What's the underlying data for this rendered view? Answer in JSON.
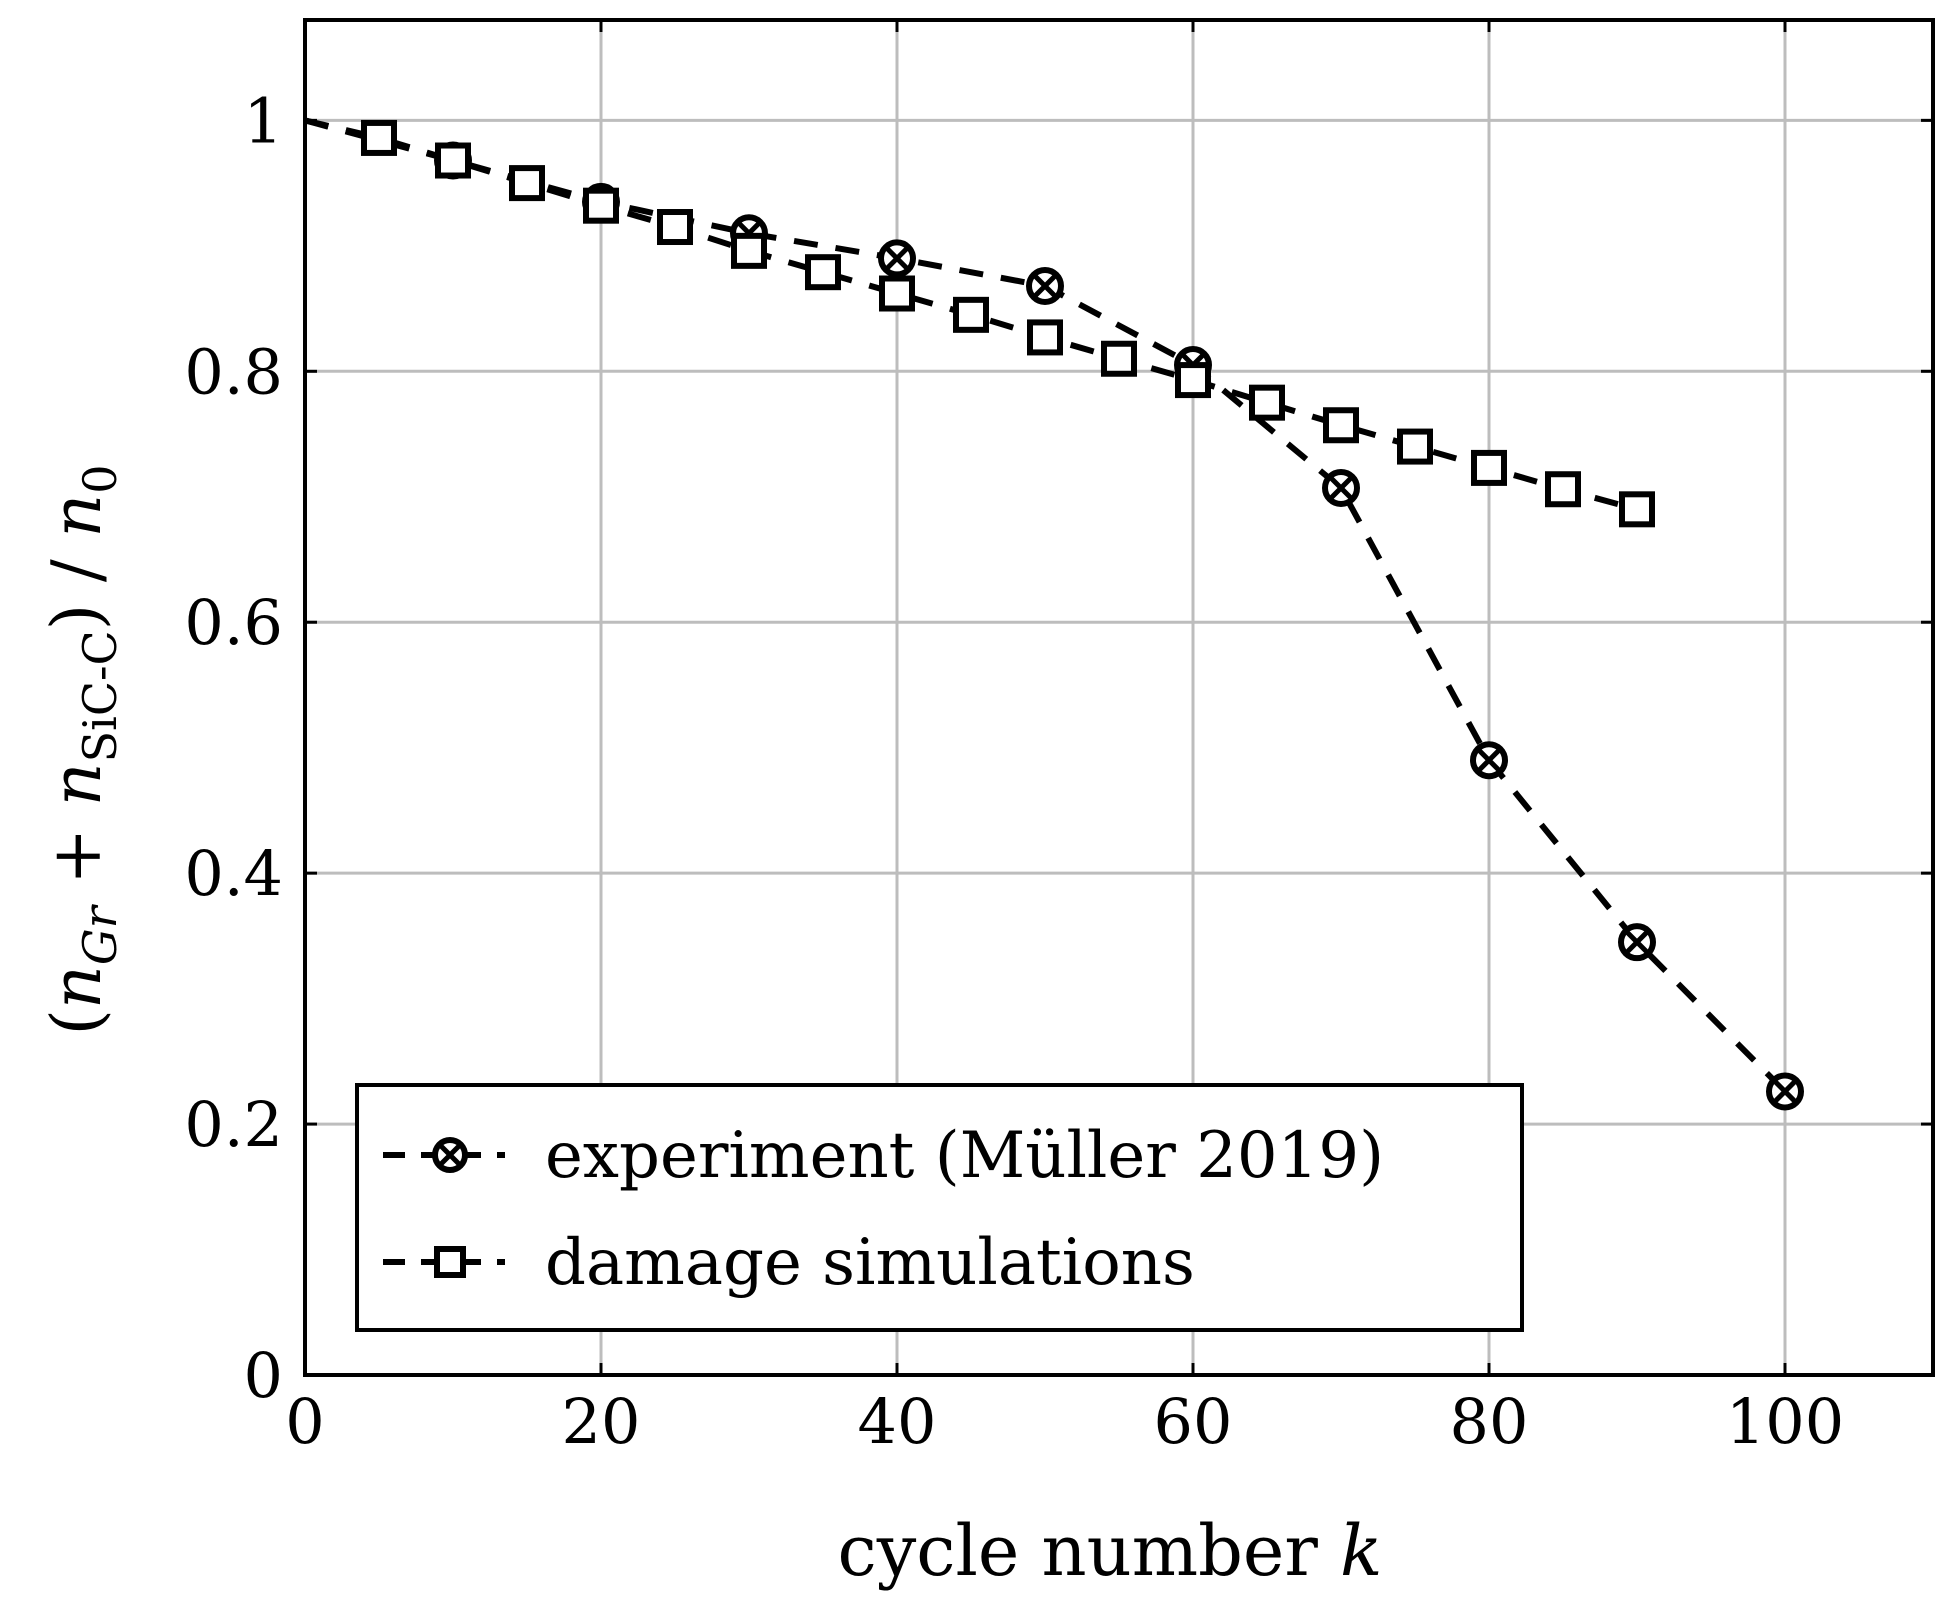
{
  "chart_data": {
    "type": "line",
    "xlabel_parts": [
      "cycle number ",
      "k"
    ],
    "ylabel_parts": {
      "open": "(",
      "n1": "n",
      "sub1": "Gr",
      "plus": " + ",
      "n2": "n",
      "sub2": "SiC-C",
      "close": ")",
      "slash": " / ",
      "n3": "n",
      "sub3": "0"
    },
    "xlim": [
      0,
      110
    ],
    "ylim": [
      0,
      1.08
    ],
    "xticks": [
      0,
      20,
      40,
      60,
      80,
      100
    ],
    "xtick_labels": [
      "0",
      "20",
      "40",
      "60",
      "80",
      "100"
    ],
    "yticks": [
      0,
      0.2,
      0.4,
      0.6,
      0.8,
      1
    ],
    "ytick_labels": [
      "0",
      "0.2",
      "0.4",
      "0.6",
      "0.8",
      "1"
    ],
    "grid": true,
    "legend_position": "bottom-left",
    "series": [
      {
        "name": "experiment (Müller 2019)",
        "marker": "circle-cross",
        "line": "dashed",
        "x": [
          0,
          10,
          20,
          30,
          40,
          50,
          60,
          70,
          80,
          90,
          100
        ],
        "y": [
          1.0,
          0.968,
          0.935,
          0.91,
          0.89,
          0.868,
          0.805,
          0.707,
          0.49,
          0.345,
          0.226
        ]
      },
      {
        "name": "damage simulations",
        "marker": "square",
        "line": "dashed",
        "x": [
          0,
          5,
          10,
          15,
          20,
          25,
          30,
          35,
          40,
          45,
          50,
          55,
          60,
          65,
          70,
          75,
          80,
          85,
          90
        ],
        "y": [
          1.0,
          0.986,
          0.968,
          0.95,
          0.932,
          0.915,
          0.896,
          0.879,
          0.862,
          0.845,
          0.827,
          0.81,
          0.793,
          0.775,
          0.757,
          0.74,
          0.723,
          0.706,
          0.69
        ]
      }
    ]
  }
}
